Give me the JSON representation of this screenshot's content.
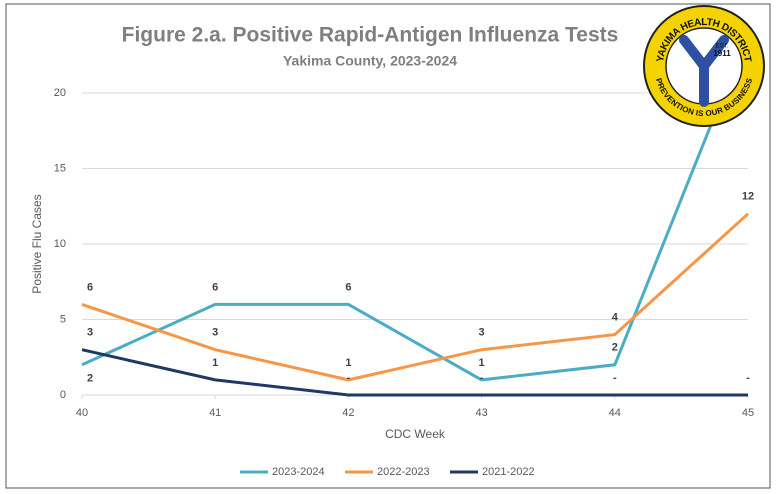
{
  "chart_data": {
    "type": "line",
    "title": "Figure 2.a. Positive Rapid-Antigen Influenza Tests",
    "subtitle": "Yakima County, 2023-2024",
    "x_label": "CDC Week",
    "y_label": "Positive Flu Cases",
    "x": [
      40,
      41,
      42,
      43,
      44,
      45
    ],
    "xlim": [
      40,
      45
    ],
    "xticks": [
      40,
      41,
      42,
      43,
      44,
      45
    ],
    "ylim": [
      0,
      20
    ],
    "yticks": [
      0,
      5,
      10,
      15,
      20
    ],
    "grid": true,
    "legend": "bottom",
    "series": [
      {
        "name": "2023-2024",
        "color": "#4bacc6",
        "values": [
          2,
          6,
          6,
          1,
          2,
          24
        ],
        "value_labels": [
          "2",
          "6",
          "6",
          "1",
          "2",
          null
        ]
      },
      {
        "name": "2022-2023",
        "color": "#f79646",
        "values": [
          6,
          3,
          1,
          3,
          4,
          12
        ],
        "value_labels": [
          "6",
          "3",
          "1",
          "3",
          "4",
          "12"
        ]
      },
      {
        "name": "2021-2022",
        "color": "#1f3864",
        "values": [
          3,
          1,
          0,
          0,
          0,
          0
        ],
        "value_labels": [
          "3",
          "1",
          "-",
          "-",
          "-",
          "-"
        ]
      }
    ]
  },
  "logo": {
    "top_text": "YAKIMA HEALTH DISTRICT",
    "est": "EST.",
    "year": "1911",
    "bottom_text": "PREVENTION IS OUR BUSINESS"
  }
}
